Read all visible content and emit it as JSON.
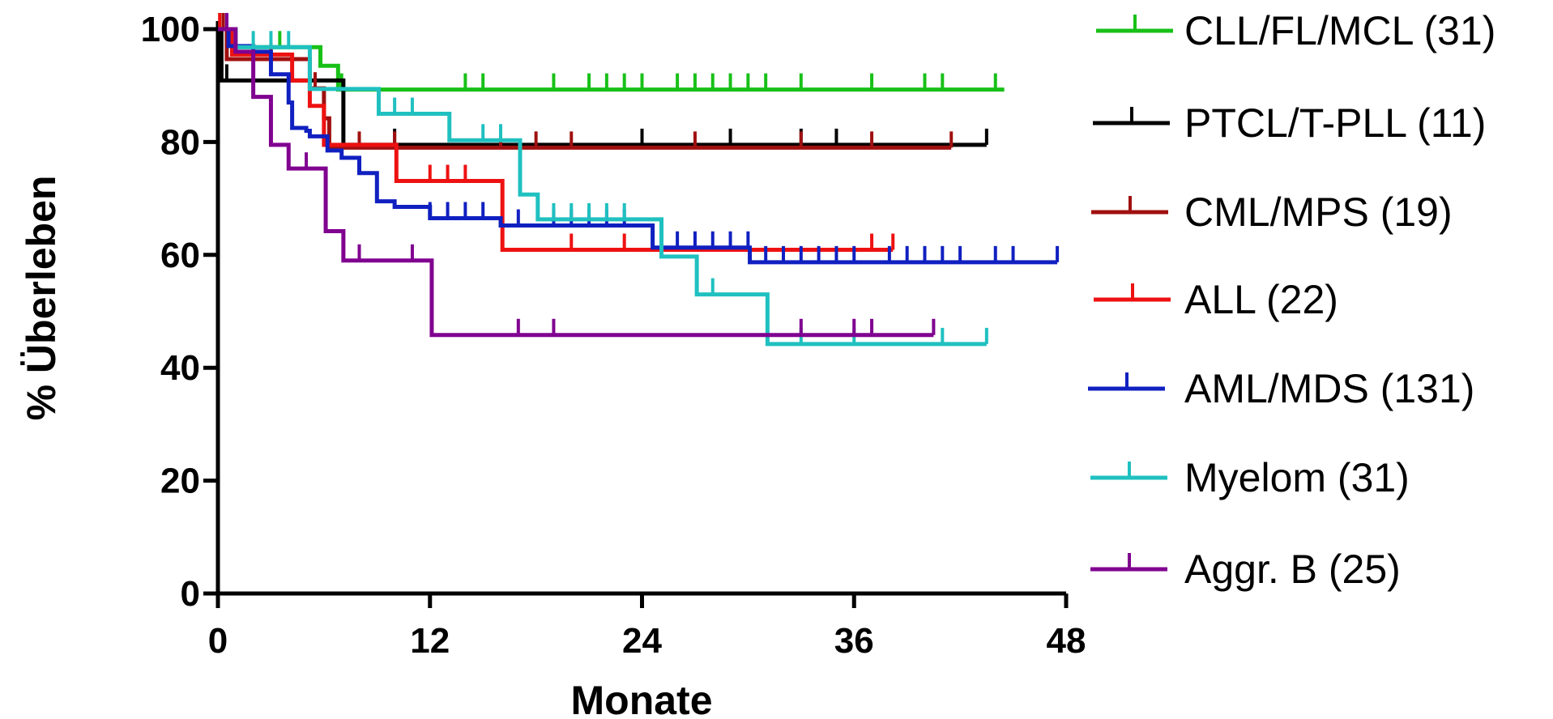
{
  "chart_data": {
    "type": "line",
    "step": true,
    "xlabel": "Monate",
    "ylabel": "% Überleben",
    "xlim": [
      0,
      48
    ],
    "ylim": [
      0,
      100
    ],
    "xticks": [
      0,
      12,
      24,
      36,
      48
    ],
    "yticks": [
      0,
      20,
      40,
      60,
      80,
      100
    ],
    "grid": false,
    "legend_position": "right",
    "series": [
      {
        "name": "CLL/FL/MCL (31)",
        "color": "#18c018",
        "points": [
          [
            0,
            100
          ],
          [
            1,
            96.8
          ],
          [
            4,
            96.8
          ],
          [
            5.8,
            93.5
          ],
          [
            6,
            93.5
          ],
          [
            6.8,
            89.3
          ],
          [
            44.5,
            89.3
          ]
        ],
        "censor": [
          0.3,
          3.5,
          7,
          14,
          15,
          19,
          21,
          22,
          23,
          24,
          26,
          27,
          28,
          29,
          30,
          31,
          33,
          37,
          40,
          41,
          44
        ]
      },
      {
        "name": "PTCL/T-PLL (11)",
        "color": "#000000",
        "points": [
          [
            0,
            100
          ],
          [
            0.2,
            90.9
          ],
          [
            7,
            90.9
          ],
          [
            7.1,
            79.5
          ],
          [
            43.5,
            79.5
          ]
        ],
        "censor": [
          0.5,
          10,
          16,
          24,
          29,
          33,
          35,
          43.5
        ]
      },
      {
        "name": "CML/MPS (19)",
        "color": "#a01010",
        "points": [
          [
            0,
            100
          ],
          [
            0.5,
            94.7
          ],
          [
            5,
            94.7
          ],
          [
            5.2,
            89.5
          ],
          [
            5.8,
            89.5
          ],
          [
            6,
            84.2
          ],
          [
            6.3,
            79
          ],
          [
            41.5,
            79
          ]
        ],
        "censor": [
          0.3,
          3,
          5.5,
          8,
          10,
          16,
          18,
          20,
          27,
          33,
          37,
          41.5
        ]
      },
      {
        "name": "ALL (22)",
        "color": "#ee1111",
        "points": [
          [
            0,
            100
          ],
          [
            0.8,
            95.5
          ],
          [
            4,
            95.5
          ],
          [
            4.2,
            90.9
          ],
          [
            5,
            90.9
          ],
          [
            5.2,
            86.4
          ],
          [
            5.8,
            86.4
          ],
          [
            6,
            79.5
          ],
          [
            10,
            79.5
          ],
          [
            10.1,
            73.1
          ],
          [
            16,
            73.1
          ],
          [
            16.1,
            60.9
          ],
          [
            38.2,
            60.9
          ]
        ],
        "censor": [
          0.1,
          12,
          13,
          14,
          20,
          23,
          37,
          38.2
        ]
      },
      {
        "name": "AML/MDS (131)",
        "color": "#1020c0",
        "points": [
          [
            0,
            100
          ],
          [
            0.6,
            97
          ],
          [
            2,
            96
          ],
          [
            3,
            92
          ],
          [
            4,
            87
          ],
          [
            4.2,
            82.5
          ],
          [
            5,
            82
          ],
          [
            5.2,
            81
          ],
          [
            6,
            81
          ],
          [
            6.2,
            78.5
          ],
          [
            7,
            77.2
          ],
          [
            8,
            74.5
          ],
          [
            9,
            69.5
          ],
          [
            10,
            68.5
          ],
          [
            12,
            66.5
          ],
          [
            16,
            65.2
          ],
          [
            24.5,
            65.2
          ],
          [
            24.6,
            61.3
          ],
          [
            30,
            61.3
          ],
          [
            30.1,
            58.7
          ],
          [
            47.5,
            58.7
          ]
        ],
        "censor": [
          0.5,
          12,
          13,
          14,
          15,
          17,
          19,
          20,
          21,
          22,
          23,
          26,
          27,
          28,
          29,
          30,
          31,
          32,
          33,
          34,
          35,
          36,
          38,
          39,
          40,
          41,
          42,
          44,
          45,
          47.5
        ]
      },
      {
        "name": "Myelom (31)",
        "color": "#20c0c0",
        "points": [
          [
            0,
            100
          ],
          [
            1,
            96.8
          ],
          [
            5,
            96.8
          ],
          [
            5.2,
            89.4
          ],
          [
            9,
            89.4
          ],
          [
            9.1,
            85
          ],
          [
            13,
            85
          ],
          [
            13.1,
            80.3
          ],
          [
            17,
            80.3
          ],
          [
            17.1,
            70.7
          ],
          [
            18,
            70.7
          ],
          [
            18.1,
            66.3
          ],
          [
            25,
            66.3
          ],
          [
            25.1,
            59.7
          ],
          [
            27,
            59.7
          ],
          [
            27.1,
            53
          ],
          [
            31,
            53
          ],
          [
            31.1,
            44.2
          ],
          [
            43.5,
            44.2
          ]
        ],
        "censor": [
          1,
          2,
          3,
          4,
          10,
          11,
          15,
          16,
          19,
          20,
          21,
          22,
          23,
          28,
          33,
          36,
          41,
          43.5
        ]
      },
      {
        "name": "Aggr. B (25)",
        "color": "#800090",
        "points": [
          [
            0,
            100
          ],
          [
            1,
            96
          ],
          [
            2,
            88
          ],
          [
            3,
            79.5
          ],
          [
            4,
            75.3
          ],
          [
            6,
            75.3
          ],
          [
            6.1,
            64.2
          ],
          [
            7,
            64.2
          ],
          [
            7.1,
            59
          ],
          [
            12,
            59
          ],
          [
            12.1,
            45.8
          ],
          [
            40.5,
            45.8
          ]
        ],
        "censor": [
          0.5,
          5,
          8,
          11,
          17,
          19,
          33,
          36,
          37,
          40.5
        ]
      }
    ]
  }
}
